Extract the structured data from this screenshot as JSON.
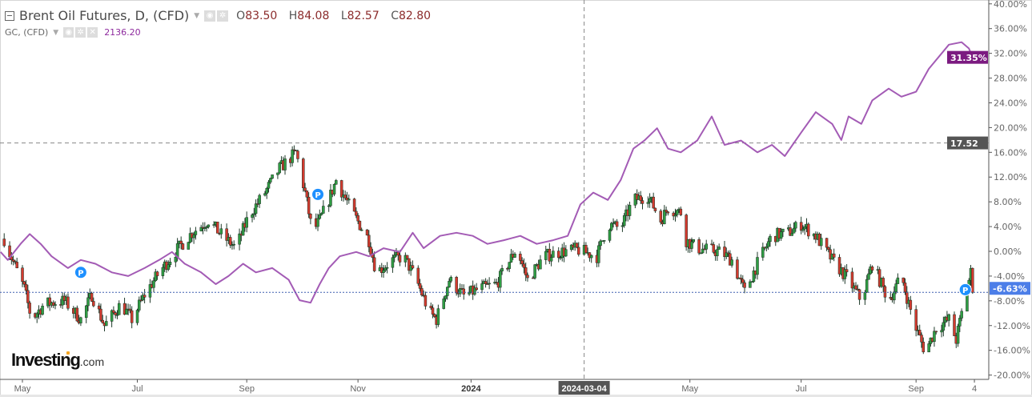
{
  "legend": {
    "main_title": "Brent Oil Futures, D, (CFD)",
    "open_label": "O",
    "open": "83.50",
    "high_label": "H",
    "high": "84.08",
    "low_label": "L",
    "low": "82.57",
    "close_label": "C",
    "close": "82.80",
    "compare_title": "GC, (CFD)",
    "compare_value": "2136.20",
    "icons": [
      "collapse-icon",
      "eye-icon",
      "gear-icon",
      "close-icon",
      "caret-down-icon"
    ]
  },
  "logo": {
    "brand": "Investing",
    "suffix": ".com"
  },
  "colors": {
    "up": "#2f9e44",
    "down": "#d43a2f",
    "gc_line": "#a35bb5",
    "gc_badge": "#7b1a80",
    "last_badge": "#4c7ee8",
    "crosshair_badge": "#555555",
    "marker": "#1e90ff"
  },
  "chart_data": {
    "type": "candlestick+line",
    "y_axis": {
      "unit": "%",
      "range": [
        -20,
        40
      ],
      "ticks": [
        "40.00%",
        "36.00%",
        "32.00%",
        "28.00%",
        "24.00%",
        "20.00%",
        "16.00%",
        "12.00%",
        "8.00%",
        "4.00%",
        "0.00%",
        "-4.00%",
        "-8.00%",
        "-12.00%",
        "-16.00%",
        "-20.00%"
      ],
      "tick_values": [
        40,
        36,
        32,
        28,
        24,
        20,
        16,
        12,
        8,
        4,
        0,
        -4,
        -8,
        -12,
        -16,
        -20
      ]
    },
    "x_axis": {
      "ticks": [
        {
          "label": "May",
          "date": "2023-05-01"
        },
        {
          "label": "Jul",
          "date": "2023-07-03"
        },
        {
          "label": "Sep",
          "date": "2023-09-01"
        },
        {
          "label": "Nov",
          "date": "2023-11-01"
        },
        {
          "label": "2024",
          "date": "2024-01-02"
        },
        {
          "label": "May",
          "date": "2024-05-01"
        },
        {
          "label": "Jul",
          "date": "2024-07-01"
        },
        {
          "label": "Sep",
          "date": "2024-09-02"
        },
        {
          "label": "4",
          "date": "2024-10-04"
        }
      ]
    },
    "crosshair": {
      "date_label": "2024-03-04",
      "date": "2024-03-04",
      "value": 17.52,
      "value_label": "17.52"
    },
    "badges": {
      "gc_last": "31.35%",
      "brent_last": "-6.63%"
    },
    "markers": [
      {
        "label": "P",
        "date": "2023-06-02",
        "value": -3.4
      },
      {
        "label": "P",
        "date": "2023-10-10",
        "value": 9.2
      },
      {
        "label": "P",
        "date": "2024-09-29",
        "value": -6.2
      }
    ],
    "series": [
      {
        "name": "Brent Oil Futures, D, (CFD)",
        "style": "candles",
        "points": [
          [
            "2023-04-21",
            2
          ],
          [
            "2023-04-25",
            -1
          ],
          [
            "2023-05-02",
            -6
          ],
          [
            "2023-05-06",
            -11
          ],
          [
            "2023-05-13",
            -8.5
          ],
          [
            "2023-05-24",
            -8
          ],
          [
            "2023-06-02",
            -11
          ],
          [
            "2023-06-08",
            -7
          ],
          [
            "2023-06-15",
            -12
          ],
          [
            "2023-06-24",
            -8.5
          ],
          [
            "2023-06-30",
            -11
          ],
          [
            "2023-07-07",
            -7
          ],
          [
            "2023-07-15",
            -3.4
          ],
          [
            "2023-07-24",
            0
          ],
          [
            "2023-08-02",
            3
          ],
          [
            "2023-08-11",
            5
          ],
          [
            "2023-08-17",
            3
          ],
          [
            "2023-08-26",
            0.5
          ],
          [
            "2023-09-02",
            5.7
          ],
          [
            "2023-09-11",
            9.5
          ],
          [
            "2023-09-19",
            13.4
          ],
          [
            "2023-09-28",
            16
          ],
          [
            "2023-10-03",
            9.5
          ],
          [
            "2023-10-07",
            3
          ],
          [
            "2023-10-11",
            5
          ],
          [
            "2023-10-16",
            8.3
          ],
          [
            "2023-10-20",
            11.5
          ],
          [
            "2023-10-29",
            6.3
          ],
          [
            "2023-11-07",
            1.8
          ],
          [
            "2023-11-11",
            -3.4
          ],
          [
            "2023-11-20",
            -1.4
          ],
          [
            "2023-11-26",
            -0.8
          ],
          [
            "2023-12-03",
            -4.6
          ],
          [
            "2023-12-10",
            -9.8
          ],
          [
            "2023-12-14",
            -11
          ],
          [
            "2023-12-21",
            -4.6
          ],
          [
            "2023-12-29",
            -7.2
          ],
          [
            "2024-01-07",
            -6
          ],
          [
            "2024-01-16",
            -5.3
          ],
          [
            "2024-01-27",
            0.5
          ],
          [
            "2024-02-02",
            -4.6
          ],
          [
            "2024-02-11",
            -0.8
          ],
          [
            "2024-02-20",
            -0.1
          ],
          [
            "2024-02-29",
            0.3
          ],
          [
            "2024-03-11",
            -0.8
          ],
          [
            "2024-03-17",
            4.4
          ],
          [
            "2024-03-24",
            3.7
          ],
          [
            "2024-03-31",
            8.3
          ],
          [
            "2024-04-08",
            9
          ],
          [
            "2024-04-15",
            5
          ],
          [
            "2024-04-19",
            7
          ],
          [
            "2024-04-26",
            6.3
          ],
          [
            "2024-04-29",
            1.8
          ],
          [
            "2024-05-05",
            0.5
          ],
          [
            "2024-05-18",
            -0.1
          ],
          [
            "2024-05-24",
            -1.4
          ],
          [
            "2024-05-31",
            -6.6
          ],
          [
            "2024-06-07",
            -2
          ],
          [
            "2024-06-15",
            2.5
          ],
          [
            "2024-06-24",
            3
          ],
          [
            "2024-07-01",
            4.4
          ],
          [
            "2024-07-09",
            2.5
          ],
          [
            "2024-07-18",
            -1.4
          ],
          [
            "2024-07-27",
            -4.6
          ],
          [
            "2024-08-03",
            -8
          ],
          [
            "2024-08-09",
            -2
          ],
          [
            "2024-08-18",
            -8
          ],
          [
            "2024-08-25",
            -4
          ],
          [
            "2024-08-29",
            -8.5
          ],
          [
            "2024-09-02",
            -12.4
          ],
          [
            "2024-09-07",
            -16.3
          ],
          [
            "2024-09-13",
            -12.4
          ],
          [
            "2024-09-20",
            -11
          ],
          [
            "2024-09-24",
            -14.3
          ],
          [
            "2024-09-29",
            -7.2
          ],
          [
            "2024-10-02",
            -3.4
          ],
          [
            "2024-10-03",
            -6.63
          ]
        ]
      },
      {
        "name": "GC, (CFD)",
        "style": "line",
        "points": [
          [
            "2023-04-19",
            -0.1
          ],
          [
            "2023-04-23",
            -1.4
          ],
          [
            "2023-04-30",
            1.2
          ],
          [
            "2023-05-05",
            2.8
          ],
          [
            "2023-05-11",
            1.2
          ],
          [
            "2023-05-17",
            -0.8
          ],
          [
            "2023-05-26",
            -2.7
          ],
          [
            "2023-06-02",
            -1.4
          ],
          [
            "2023-06-10",
            -2
          ],
          [
            "2023-06-19",
            -3.4
          ],
          [
            "2023-06-28",
            -4
          ],
          [
            "2023-07-07",
            -2.7
          ],
          [
            "2023-07-15",
            -1.4
          ],
          [
            "2023-07-22",
            -0.1
          ],
          [
            "2023-07-29",
            -2
          ],
          [
            "2023-08-07",
            -3.4
          ],
          [
            "2023-08-15",
            -5.3
          ],
          [
            "2023-08-22",
            -4
          ],
          [
            "2023-08-30",
            -2
          ],
          [
            "2023-09-06",
            -3.4
          ],
          [
            "2023-09-15",
            -2.7
          ],
          [
            "2023-09-24",
            -4.6
          ],
          [
            "2023-09-30",
            -7.9
          ],
          [
            "2023-10-06",
            -8.3
          ],
          [
            "2023-10-11",
            -5.3
          ],
          [
            "2023-10-16",
            -2.7
          ],
          [
            "2023-10-22",
            -0.8
          ],
          [
            "2023-10-31",
            -0.1
          ],
          [
            "2023-11-07",
            -0.8
          ],
          [
            "2023-11-15",
            0.5
          ],
          [
            "2023-11-24",
            -0.1
          ],
          [
            "2023-12-01",
            3
          ],
          [
            "2023-12-07",
            0.5
          ],
          [
            "2023-12-16",
            2.5
          ],
          [
            "2023-12-25",
            3
          ],
          [
            "2024-01-03",
            2.5
          ],
          [
            "2024-01-11",
            1.2
          ],
          [
            "2024-01-20",
            1.8
          ],
          [
            "2024-01-29",
            2.5
          ],
          [
            "2024-02-07",
            1.2
          ],
          [
            "2024-02-16",
            1.8
          ],
          [
            "2024-02-24",
            2.5
          ],
          [
            "2024-03-02",
            7.6
          ],
          [
            "2024-03-09",
            9.5
          ],
          [
            "2024-03-17",
            8.3
          ],
          [
            "2024-03-24",
            11.5
          ],
          [
            "2024-03-31",
            16.6
          ],
          [
            "2024-04-06",
            17.9
          ],
          [
            "2024-04-13",
            19.9
          ],
          [
            "2024-04-19",
            16.6
          ],
          [
            "2024-04-26",
            16
          ],
          [
            "2024-05-05",
            17.9
          ],
          [
            "2024-05-13",
            21.8
          ],
          [
            "2024-05-20",
            17.2
          ],
          [
            "2024-05-29",
            17.9
          ],
          [
            "2024-06-07",
            16
          ],
          [
            "2024-06-15",
            17.2
          ],
          [
            "2024-06-22",
            15.4
          ],
          [
            "2024-07-01",
            19.2
          ],
          [
            "2024-07-09",
            22.5
          ],
          [
            "2024-07-18",
            20.6
          ],
          [
            "2024-07-23",
            18
          ],
          [
            "2024-07-27",
            21.8
          ],
          [
            "2024-08-03",
            20.6
          ],
          [
            "2024-08-09",
            24.4
          ],
          [
            "2024-08-18",
            26.3
          ],
          [
            "2024-08-25",
            25
          ],
          [
            "2024-09-02",
            25.8
          ],
          [
            "2024-09-09",
            29.5
          ],
          [
            "2024-09-20",
            33.4
          ],
          [
            "2024-09-27",
            33.8
          ],
          [
            "2024-10-01",
            32.8
          ],
          [
            "2024-10-03",
            31.35
          ]
        ]
      }
    ]
  }
}
